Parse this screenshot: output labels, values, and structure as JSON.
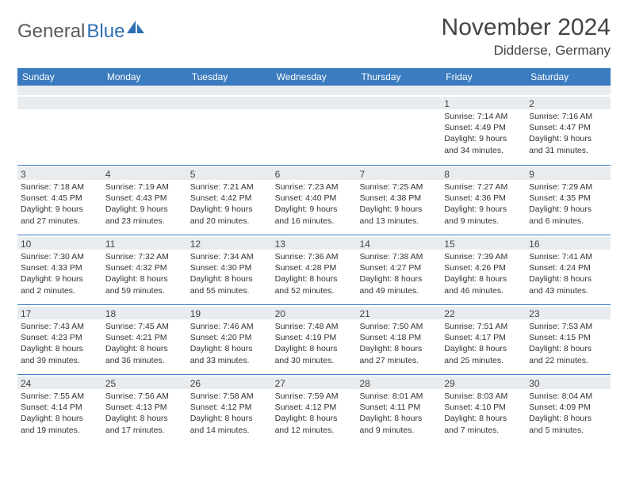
{
  "logo": {
    "text1": "General",
    "text2": "Blue"
  },
  "title": "November 2024",
  "location": "Didderse, Germany",
  "header_color": "#3b7bbf",
  "grid_line_color": "#3b7bbf",
  "daynum_bg": "#e9ecef",
  "day_headers": [
    "Sunday",
    "Monday",
    "Tuesday",
    "Wednesday",
    "Thursday",
    "Friday",
    "Saturday"
  ],
  "weeks": [
    [
      null,
      null,
      null,
      null,
      null,
      {
        "n": "1",
        "sr": "7:14 AM",
        "ss": "4:49 PM",
        "dl": "9 hours and 34 minutes."
      },
      {
        "n": "2",
        "sr": "7:16 AM",
        "ss": "4:47 PM",
        "dl": "9 hours and 31 minutes."
      }
    ],
    [
      {
        "n": "3",
        "sr": "7:18 AM",
        "ss": "4:45 PM",
        "dl": "9 hours and 27 minutes."
      },
      {
        "n": "4",
        "sr": "7:19 AM",
        "ss": "4:43 PM",
        "dl": "9 hours and 23 minutes."
      },
      {
        "n": "5",
        "sr": "7:21 AM",
        "ss": "4:42 PM",
        "dl": "9 hours and 20 minutes."
      },
      {
        "n": "6",
        "sr": "7:23 AM",
        "ss": "4:40 PM",
        "dl": "9 hours and 16 minutes."
      },
      {
        "n": "7",
        "sr": "7:25 AM",
        "ss": "4:38 PM",
        "dl": "9 hours and 13 minutes."
      },
      {
        "n": "8",
        "sr": "7:27 AM",
        "ss": "4:36 PM",
        "dl": "9 hours and 9 minutes."
      },
      {
        "n": "9",
        "sr": "7:29 AM",
        "ss": "4:35 PM",
        "dl": "9 hours and 6 minutes."
      }
    ],
    [
      {
        "n": "10",
        "sr": "7:30 AM",
        "ss": "4:33 PM",
        "dl": "9 hours and 2 minutes."
      },
      {
        "n": "11",
        "sr": "7:32 AM",
        "ss": "4:32 PM",
        "dl": "8 hours and 59 minutes."
      },
      {
        "n": "12",
        "sr": "7:34 AM",
        "ss": "4:30 PM",
        "dl": "8 hours and 55 minutes."
      },
      {
        "n": "13",
        "sr": "7:36 AM",
        "ss": "4:28 PM",
        "dl": "8 hours and 52 minutes."
      },
      {
        "n": "14",
        "sr": "7:38 AM",
        "ss": "4:27 PM",
        "dl": "8 hours and 49 minutes."
      },
      {
        "n": "15",
        "sr": "7:39 AM",
        "ss": "4:26 PM",
        "dl": "8 hours and 46 minutes."
      },
      {
        "n": "16",
        "sr": "7:41 AM",
        "ss": "4:24 PM",
        "dl": "8 hours and 43 minutes."
      }
    ],
    [
      {
        "n": "17",
        "sr": "7:43 AM",
        "ss": "4:23 PM",
        "dl": "8 hours and 39 minutes."
      },
      {
        "n": "18",
        "sr": "7:45 AM",
        "ss": "4:21 PM",
        "dl": "8 hours and 36 minutes."
      },
      {
        "n": "19",
        "sr": "7:46 AM",
        "ss": "4:20 PM",
        "dl": "8 hours and 33 minutes."
      },
      {
        "n": "20",
        "sr": "7:48 AM",
        "ss": "4:19 PM",
        "dl": "8 hours and 30 minutes."
      },
      {
        "n": "21",
        "sr": "7:50 AM",
        "ss": "4:18 PM",
        "dl": "8 hours and 27 minutes."
      },
      {
        "n": "22",
        "sr": "7:51 AM",
        "ss": "4:17 PM",
        "dl": "8 hours and 25 minutes."
      },
      {
        "n": "23",
        "sr": "7:53 AM",
        "ss": "4:15 PM",
        "dl": "8 hours and 22 minutes."
      }
    ],
    [
      {
        "n": "24",
        "sr": "7:55 AM",
        "ss": "4:14 PM",
        "dl": "8 hours and 19 minutes."
      },
      {
        "n": "25",
        "sr": "7:56 AM",
        "ss": "4:13 PM",
        "dl": "8 hours and 17 minutes."
      },
      {
        "n": "26",
        "sr": "7:58 AM",
        "ss": "4:12 PM",
        "dl": "8 hours and 14 minutes."
      },
      {
        "n": "27",
        "sr": "7:59 AM",
        "ss": "4:12 PM",
        "dl": "8 hours and 12 minutes."
      },
      {
        "n": "28",
        "sr": "8:01 AM",
        "ss": "4:11 PM",
        "dl": "8 hours and 9 minutes."
      },
      {
        "n": "29",
        "sr": "8:03 AM",
        "ss": "4:10 PM",
        "dl": "8 hours and 7 minutes."
      },
      {
        "n": "30",
        "sr": "8:04 AM",
        "ss": "4:09 PM",
        "dl": "8 hours and 5 minutes."
      }
    ]
  ],
  "labels": {
    "sunrise": "Sunrise:",
    "sunset": "Sunset:",
    "daylight": "Daylight:"
  }
}
